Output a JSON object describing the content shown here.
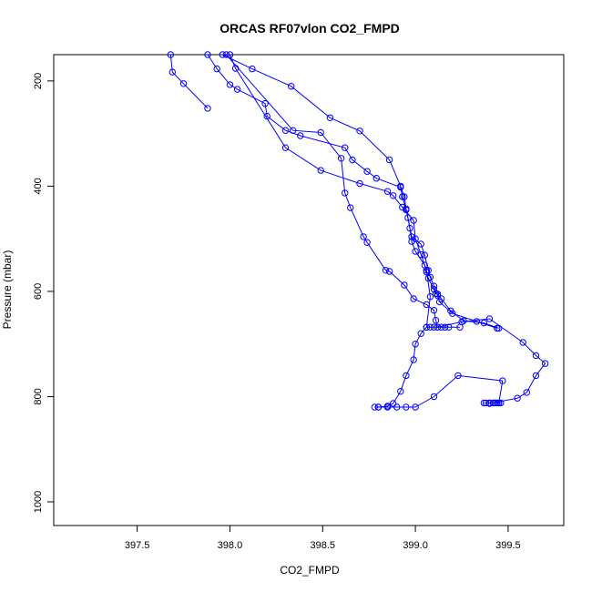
{
  "chart_data": {
    "type": "scatter",
    "title": "ORCAS RF07vlon CO2_FMPD",
    "xlabel": "CO2_FMPD",
    "ylabel": "Pressure (mbar)",
    "xlim": [
      397.05,
      399.8
    ],
    "ylim": [
      1045,
      150
    ],
    "y_reversed": true,
    "x_ticks": [
      "397.5",
      "398.0",
      "398.5",
      "399.0",
      "399.5"
    ],
    "y_ticks": [
      "200",
      "400",
      "600",
      "800",
      "1000"
    ],
    "grid": false,
    "legend": "none",
    "series_color": "#0000ff",
    "marker": "open-circle",
    "connected": true,
    "series": [
      {
        "x": [
          397.68,
          397.69,
          397.75,
          397.88
        ],
        "y": [
          150,
          183,
          205,
          252
        ]
      },
      {
        "x": [
          397.88,
          397.93,
          398.0,
          398.04,
          398.19,
          398.2,
          398.3,
          398.38,
          398.62,
          398.66,
          398.74,
          398.79,
          398.92,
          398.93,
          398.95,
          398.96,
          398.97,
          398.98,
          399.0,
          399.05,
          399.06,
          399.07,
          399.1,
          399.11,
          399.12,
          399.14,
          399.19,
          399.26,
          399.37,
          399.45
        ],
        "y": [
          150,
          177,
          207,
          216,
          243,
          267,
          294,
          304,
          327,
          350,
          372,
          385,
          402,
          420,
          445,
          460,
          480,
          505,
          524,
          550,
          563,
          575,
          596,
          604,
          605,
          614,
          637,
          656,
          660,
          670
        ]
      },
      {
        "x": [
          397.96,
          398.12,
          398.33,
          398.54,
          398.7,
          398.86,
          398.92,
          398.94,
          398.95,
          398.98,
          399.03,
          399.05,
          399.07,
          399.08,
          399.1,
          399.12,
          399.13,
          399.2,
          399.33,
          399.44
        ],
        "y": [
          150,
          177,
          210,
          270,
          295,
          350,
          400,
          420,
          443,
          496,
          510,
          531,
          560,
          573,
          590,
          608,
          620,
          642,
          657,
          670
        ]
      },
      {
        "x": [
          397.98,
          398.34,
          398.49,
          398.6,
          398.62,
          398.65,
          398.72,
          398.74,
          398.84,
          398.86,
          398.94,
          398.99,
          399.06,
          399.1,
          399.11,
          399.12,
          399.25,
          399.4,
          399.58,
          399.65,
          399.7,
          399.65,
          399.6,
          399.55,
          399.4
        ],
        "y": [
          150,
          294,
          298,
          347,
          413,
          441,
          496,
          507,
          560,
          562,
          588,
          614,
          625,
          636,
          655,
          668,
          658,
          652,
          697,
          722,
          737,
          760,
          792,
          803,
          813
        ]
      },
      {
        "x": [
          398.0,
          398.03,
          398.3,
          398.49,
          398.7,
          398.85,
          398.88,
          398.93,
          398.99,
          399.0,
          399.03,
          399.06,
          399.08,
          399.06,
          399.03,
          399.0,
          398.99,
          398.95,
          398.92,
          398.88,
          398.85,
          398.8,
          398.78
        ],
        "y": [
          150,
          176,
          327,
          370,
          395,
          410,
          418,
          440,
          465,
          500,
          530,
          560,
          610,
          668,
          680,
          700,
          730,
          760,
          790,
          813,
          818,
          820,
          820
        ]
      },
      {
        "x": [
          398.8,
          398.85,
          398.9,
          398.95,
          399.0,
          399.1,
          399.23,
          399.47,
          399.45,
          399.43,
          399.4,
          399.37
        ],
        "y": [
          820,
          820,
          820,
          820,
          820,
          800,
          760,
          770,
          812,
          812,
          812,
          812
        ]
      },
      {
        "x": [
          399.06,
          399.08,
          399.1,
          399.12,
          399.14,
          399.16,
          399.18,
          399.24
        ],
        "y": [
          668,
          668,
          668,
          668,
          668,
          668,
          668,
          668
        ]
      },
      {
        "x": [
          399.38,
          399.4,
          399.42,
          399.43,
          399.44,
          399.45,
          399.46
        ],
        "y": [
          812,
          812,
          812,
          812,
          812,
          812,
          812
        ]
      }
    ]
  }
}
